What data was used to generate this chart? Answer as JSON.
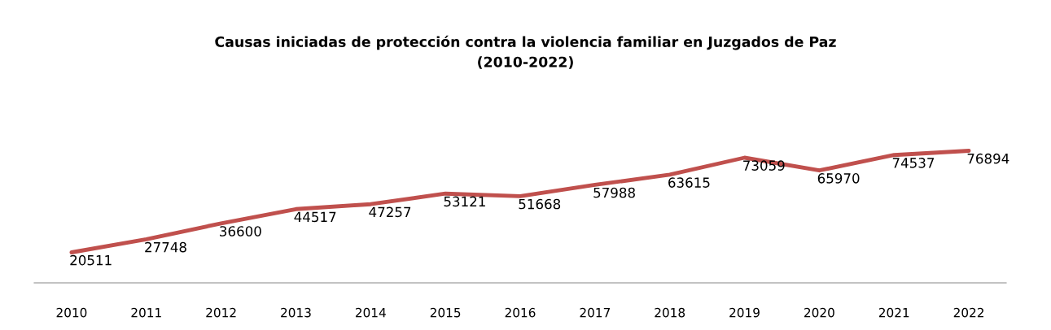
{
  "chart_data": {
    "type": "line",
    "title": "Causas iniciadas de protección contra la violencia familiar en Juzgados de Paz\n(2010-2022)",
    "categories": [
      "2010",
      "2011",
      "2012",
      "2013",
      "2014",
      "2015",
      "2016",
      "2017",
      "2018",
      "2019",
      "2020",
      "2021",
      "2022"
    ],
    "series": [
      {
        "color": "#c0504d",
        "values": [
          20511,
          27748,
          36600,
          44517,
          47257,
          53121,
          51668,
          57988,
          63615,
          73059,
          65970,
          74537,
          76894
        ]
      }
    ],
    "tick_labels": "x",
    "data_labels": true,
    "grid": false,
    "legend": false,
    "marker": "none",
    "line_style": "solid"
  }
}
